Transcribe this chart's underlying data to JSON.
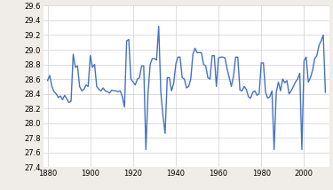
{
  "years": [
    1880,
    1881,
    1882,
    1883,
    1884,
    1885,
    1886,
    1887,
    1888,
    1889,
    1890,
    1891,
    1892,
    1893,
    1894,
    1895,
    1896,
    1897,
    1898,
    1899,
    1900,
    1901,
    1902,
    1903,
    1904,
    1905,
    1906,
    1907,
    1908,
    1909,
    1910,
    1911,
    1912,
    1913,
    1914,
    1915,
    1916,
    1917,
    1918,
    1919,
    1920,
    1921,
    1922,
    1923,
    1924,
    1925,
    1926,
    1927,
    1928,
    1929,
    1930,
    1931,
    1932,
    1933,
    1934,
    1935,
    1936,
    1937,
    1938,
    1939,
    1940,
    1941,
    1942,
    1943,
    1944,
    1945,
    1946,
    1947,
    1948,
    1949,
    1950,
    1951,
    1952,
    1953,
    1954,
    1955,
    1956,
    1957,
    1958,
    1959,
    1960,
    1961,
    1962,
    1963,
    1964,
    1965,
    1966,
    1967,
    1968,
    1969,
    1970,
    1971,
    1972,
    1973,
    1974,
    1975,
    1976,
    1977,
    1978,
    1979,
    1980,
    1981,
    1982,
    1983,
    1984,
    1985,
    1986,
    1987,
    1988,
    1989,
    1990,
    1991,
    1992,
    1993,
    1994,
    1995,
    1996,
    1997,
    1998,
    1999,
    2000,
    2001,
    2002,
    2003,
    2004,
    2005,
    2006,
    2007,
    2008,
    2009,
    2010
  ],
  "values": [
    28.58,
    28.65,
    28.5,
    28.43,
    28.4,
    28.35,
    28.37,
    28.32,
    28.38,
    28.33,
    28.28,
    28.3,
    28.94,
    28.76,
    28.78,
    28.5,
    28.44,
    28.46,
    28.52,
    28.5,
    28.92,
    28.76,
    28.8,
    28.5,
    28.46,
    28.44,
    28.48,
    28.44,
    28.43,
    28.41,
    28.45,
    28.44,
    28.44,
    28.43,
    28.44,
    28.36,
    28.22,
    29.12,
    29.14,
    28.6,
    28.56,
    28.52,
    28.6,
    28.62,
    28.78,
    28.78,
    27.64,
    28.4,
    28.8,
    28.88,
    28.88,
    28.86,
    29.32,
    28.42,
    28.1,
    27.86,
    28.62,
    28.62,
    28.44,
    28.54,
    28.8,
    28.9,
    28.9,
    28.62,
    28.6,
    28.48,
    28.5,
    28.6,
    28.94,
    29.02,
    28.96,
    28.96,
    28.96,
    28.8,
    28.78,
    28.62,
    28.6,
    28.92,
    28.92,
    28.5,
    28.89,
    28.9,
    28.9,
    28.89,
    28.74,
    28.62,
    28.5,
    28.64,
    28.9,
    28.9,
    28.45,
    28.44,
    28.5,
    28.46,
    28.36,
    28.34,
    28.42,
    28.44,
    28.38,
    28.4,
    28.82,
    28.82,
    28.42,
    28.34,
    28.36,
    28.44,
    27.64,
    28.42,
    28.56,
    28.44,
    28.6,
    28.55,
    28.58,
    28.4,
    28.44,
    28.5,
    28.56,
    28.6,
    28.68,
    27.64,
    28.85,
    28.9,
    28.56,
    28.62,
    28.72,
    28.88,
    28.92,
    29.06,
    29.12,
    29.2,
    28.42
  ],
  "line_color": "#4472c4",
  "line_width": 1.0,
  "xlim": [
    1878,
    2012
  ],
  "ylim": [
    27.4,
    29.6
  ],
  "yticks": [
    27.4,
    27.6,
    27.8,
    28.0,
    28.2,
    28.4,
    28.6,
    28.8,
    29.0,
    29.2,
    29.4,
    29.6
  ],
  "xticks": [
    1880,
    1900,
    1920,
    1940,
    1960,
    1980,
    2000
  ],
  "grid_color": "#d0d0d0",
  "bg_color": "#f0ede8",
  "plot_bg_color": "#ffffff"
}
